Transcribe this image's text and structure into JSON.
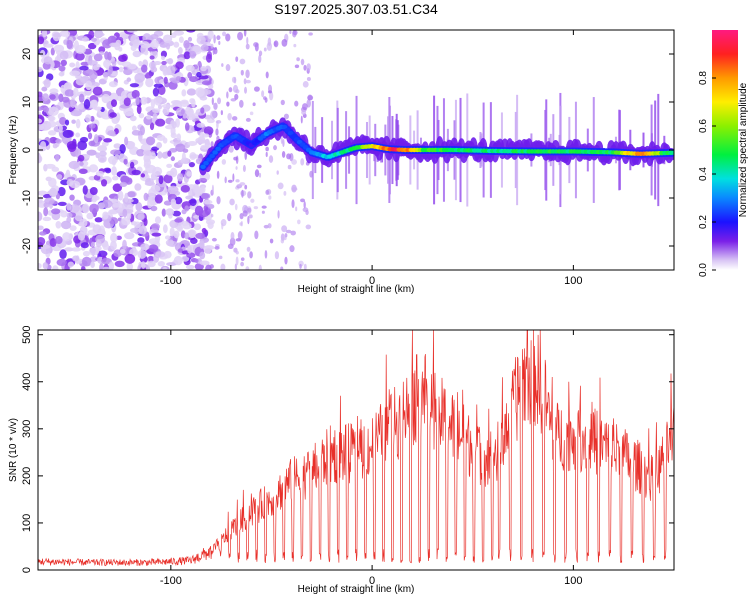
{
  "title": "S197.2025.307.03.51.C34",
  "chart_data": [
    {
      "type": "heatmap",
      "name": "spectrogram",
      "xlabel": "Height of straight line (km)",
      "ylabel": "Frequency (Hz)",
      "xlim": [
        -166,
        150
      ],
      "ylim": [
        -25,
        25
      ],
      "xticks": [
        -100,
        0,
        100
      ],
      "yticks": [
        -20,
        -10,
        0,
        10,
        20
      ],
      "colorbar": {
        "label": "Normalized spectral amplitude",
        "range": [
          0,
          1
        ],
        "ticks": [
          0.0,
          0.2,
          0.4,
          0.6,
          0.8
        ],
        "tick_labels": [
          "0.0",
          "0.2",
          "0.4",
          "0.6",
          "0.8"
        ]
      },
      "ridge": {
        "description_points": [
          {
            "x": -82,
            "y": -2.5,
            "amp": 0.3
          },
          {
            "x": -75,
            "y": 1,
            "amp": 0.25
          },
          {
            "x": -68,
            "y": 3,
            "amp": 0.25
          },
          {
            "x": -60,
            "y": 1,
            "amp": 0.2
          },
          {
            "x": -52,
            "y": 3.5,
            "amp": 0.3
          },
          {
            "x": -44,
            "y": 5,
            "amp": 0.25
          },
          {
            "x": -37,
            "y": 2,
            "amp": 0.25
          },
          {
            "x": -30,
            "y": -0.5,
            "amp": 0.3
          },
          {
            "x": -22,
            "y": -1.5,
            "amp": 0.4
          },
          {
            "x": -15,
            "y": -0.5,
            "amp": 0.45
          },
          {
            "x": -8,
            "y": 0.5,
            "amp": 0.5
          },
          {
            "x": 0,
            "y": 0.8,
            "amp": 0.7
          },
          {
            "x": 8,
            "y": 0.2,
            "amp": 0.95
          },
          {
            "x": 16,
            "y": 0,
            "amp": 0.9
          },
          {
            "x": 25,
            "y": 0,
            "amp": 0.55
          },
          {
            "x": 40,
            "y": 0,
            "amp": 0.5
          },
          {
            "x": 60,
            "y": -0.2,
            "amp": 0.45
          },
          {
            "x": 80,
            "y": -0.3,
            "amp": 0.5
          },
          {
            "x": 100,
            "y": -0.3,
            "amp": 0.5
          },
          {
            "x": 120,
            "y": -0.5,
            "amp": 0.5
          },
          {
            "x": 133,
            "y": -0.8,
            "amp": 0.9
          },
          {
            "x": 148,
            "y": -0.6,
            "amp": 0.45
          }
        ]
      }
    },
    {
      "type": "line",
      "name": "snr",
      "xlabel": "Height of straight line (km)",
      "ylabel": "SNR (10 * v/v)",
      "xlim": [
        -166,
        150
      ],
      "ylim": [
        0,
        510
      ],
      "xticks": [
        -100,
        0,
        100
      ],
      "yticks": [
        0,
        100,
        200,
        300,
        400,
        500
      ],
      "color": "#e8302a",
      "series": [
        {
          "name": "SNR envelope",
          "x": [
            -166,
            -140,
            -110,
            -90,
            -80,
            -70,
            -60,
            -50,
            -40,
            -30,
            -20,
            -10,
            0,
            10,
            20,
            25,
            35,
            45,
            50,
            55,
            62,
            70,
            75,
            80,
            85,
            90,
            100,
            110,
            120,
            130,
            140,
            150
          ],
          "y": [
            18,
            16,
            16,
            20,
            40,
            90,
            130,
            160,
            200,
            220,
            260,
            260,
            280,
            320,
            370,
            400,
            340,
            300,
            270,
            250,
            260,
            360,
            430,
            440,
            400,
            300,
            300,
            290,
            270,
            240,
            200,
            300
          ]
        }
      ]
    }
  ]
}
